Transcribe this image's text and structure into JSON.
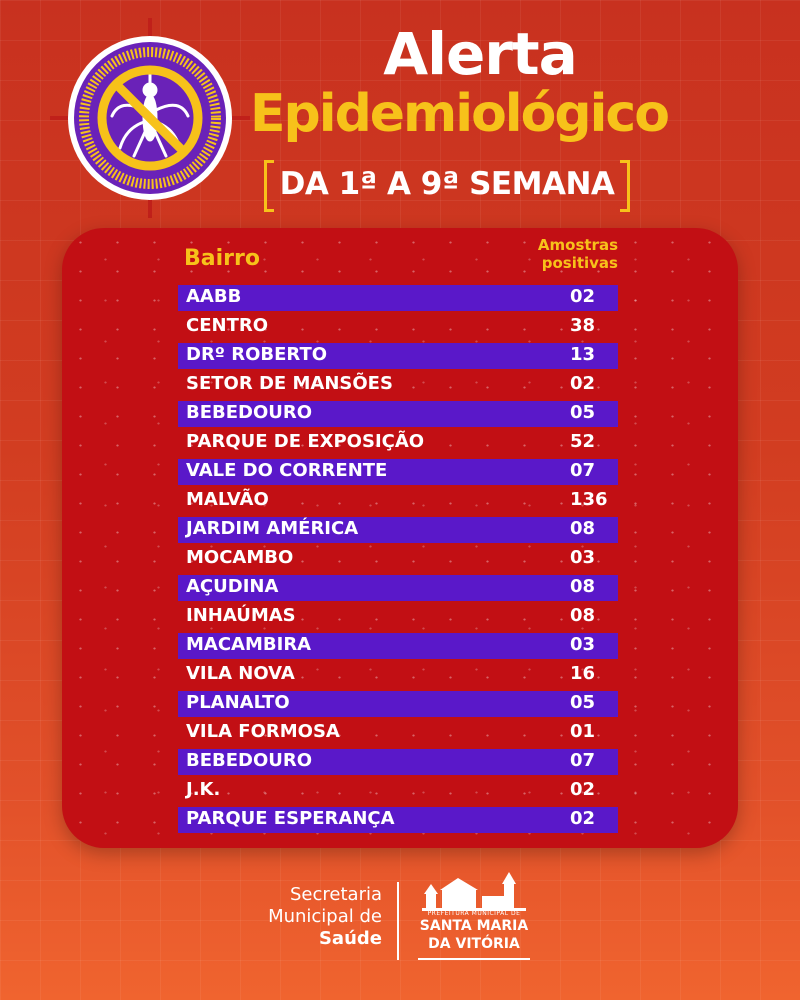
{
  "header": {
    "title_line1": "Alerta",
    "title_line2": "Epidemiológico",
    "subtitle": "DA 1ª A 9ª SEMANA"
  },
  "colors": {
    "background": "#d23d21",
    "panel": "#c20f14",
    "band": "#5a18c9",
    "accent_yellow": "#f7c21a",
    "logo_purple": "#6a22b8"
  },
  "table": {
    "col_bairro": "Bairro",
    "col_amostras_1": "Amostras",
    "col_amostras_2": "positivas",
    "rows": [
      {
        "bairro": "AABB",
        "amostras": "02"
      },
      {
        "bairro": "CENTRO",
        "amostras": "38"
      },
      {
        "bairro": "DRº ROBERTO",
        "amostras": "13"
      },
      {
        "bairro": "SETOR DE MANSÕES",
        "amostras": "02"
      },
      {
        "bairro": "BEBEDOURO",
        "amostras": "05"
      },
      {
        "bairro": "PARQUE DE EXPOSIÇÃO",
        "amostras": "52"
      },
      {
        "bairro": "VALE DO CORRENTE",
        "amostras": "07"
      },
      {
        "bairro": "MALVÃO",
        "amostras": "136"
      },
      {
        "bairro": "JARDIM AMÉRICA",
        "amostras": "08"
      },
      {
        "bairro": "MOCAMBO",
        "amostras": "03"
      },
      {
        "bairro": "AÇUDINA",
        "amostras": "08"
      },
      {
        "bairro": "INHAÚMAS",
        "amostras": "08"
      },
      {
        "bairro": "MACAMBIRA",
        "amostras": "03"
      },
      {
        "bairro": "VILA NOVA",
        "amostras": "16"
      },
      {
        "bairro": "PLANALTO",
        "amostras": "05"
      },
      {
        "bairro": "VILA FORMOSA",
        "amostras": "01"
      },
      {
        "bairro": "BEBEDOURO",
        "amostras": "07"
      },
      {
        "bairro": "J.K.",
        "amostras": "02"
      },
      {
        "bairro": "PARQUE ESPERANÇA",
        "amostras": "02"
      }
    ]
  },
  "footer": {
    "secretaria_line1": "Secretaria",
    "secretaria_line2": "Municipal de",
    "secretaria_line3": "Saúde",
    "prefeitura": "PREFEITURA MUNICIPAL DE",
    "city_line1": "SANTA MARIA",
    "city_line2": "DA VITÓRIA"
  },
  "icons": {
    "main_logo": "no-mosquito-icon",
    "footer_logo": "city-skyline-icon"
  }
}
